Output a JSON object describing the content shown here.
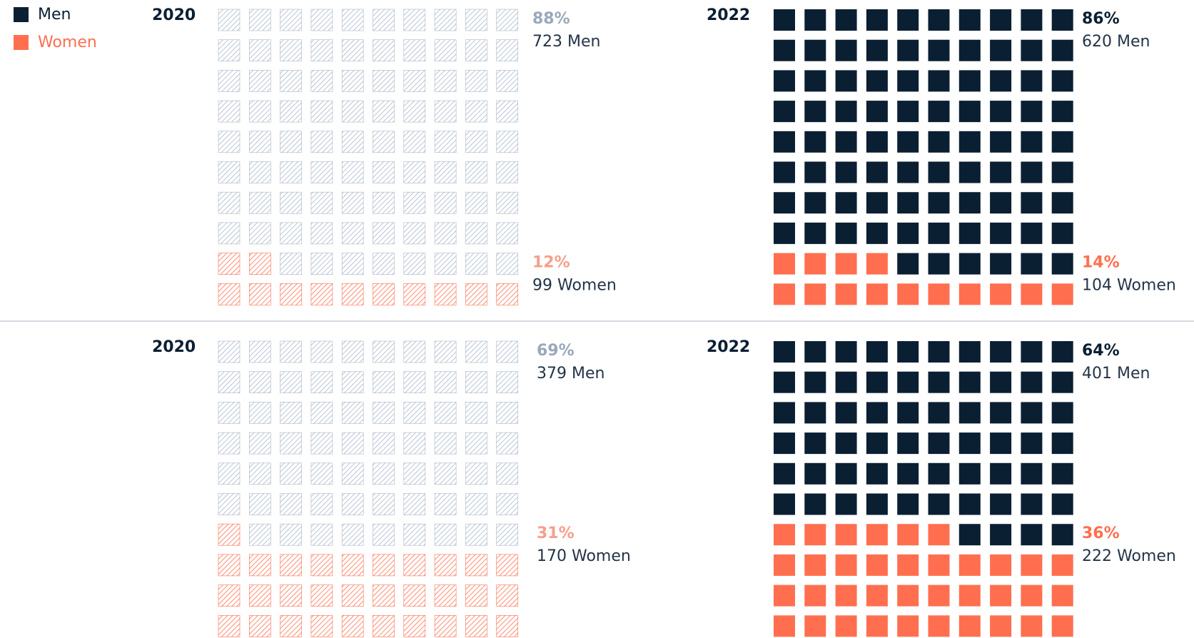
{
  "legend": [
    {
      "name": "Men",
      "color": "#0b1f33"
    },
    {
      "name": "Women",
      "color": "#ff6f4f"
    }
  ],
  "charts": [
    {
      "type": "waffle",
      "year": "2020",
      "style": "hatched",
      "series": [
        {
          "color": "#a9b6c9",
          "value": 88,
          "value_label": "88%",
          "label": "723 Men"
        },
        {
          "color": "#ff6f4f",
          "value": 12,
          "value_label": "12%",
          "label": "99 Women"
        }
      ]
    },
    {
      "type": "waffle",
      "year": "2022",
      "style": "solid",
      "series": [
        {
          "color": "#0b1f33",
          "value": 86,
          "value_label": "86%",
          "label": "620 Men"
        },
        {
          "color": "#ff6f4f",
          "value": 14,
          "value_label": "14%",
          "label": "104 Women"
        }
      ]
    },
    {
      "type": "waffle",
      "year": "2020",
      "style": "hatched",
      "series": [
        {
          "color": "#a9b6c9",
          "value": 69,
          "value_label": "69%",
          "label": "379 Men"
        },
        {
          "color": "#ff6f4f",
          "value": 31,
          "value_label": "31%",
          "label": "170 Women"
        }
      ]
    },
    {
      "type": "waffle",
      "year": "2022",
      "style": "solid",
      "series": [
        {
          "color": "#0b1f33",
          "value": 64,
          "value_label": "64%",
          "label": "401 Men"
        },
        {
          "color": "#ff6f4f",
          "value": 36,
          "value_label": "36%",
          "label": "222 Women"
        }
      ]
    }
  ]
}
